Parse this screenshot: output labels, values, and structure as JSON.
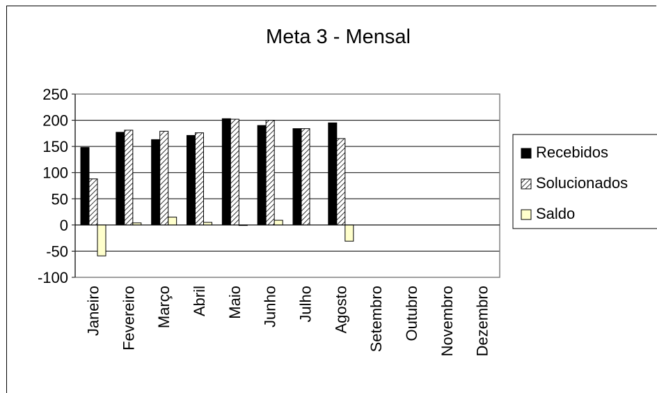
{
  "chart_data": {
    "type": "bar",
    "title": "Meta 3 - Mensal",
    "categories": [
      "Janeiro",
      "Fevereiro",
      "Março",
      "Abril",
      "Maio",
      "Junho",
      "Julho",
      "Agosto",
      "Setembro",
      "Outubro",
      "Novembro",
      "Dezembro"
    ],
    "ylim": [
      -100,
      250
    ],
    "yticks": [
      -100,
      -50,
      0,
      50,
      100,
      150,
      200,
      250
    ],
    "grid": true,
    "legend_position": "right",
    "series": [
      {
        "name": "Recebidos",
        "color": "#000000",
        "fill": "solid",
        "values": [
          148,
          177,
          163,
          171,
          203,
          190,
          184,
          195,
          null,
          null,
          null,
          null
        ]
      },
      {
        "name": "Solucionados",
        "color": "#ffffff",
        "fill": "diagonal-hatch",
        "values": [
          88,
          181,
          179,
          176,
          202,
          200,
          184,
          165,
          null,
          null,
          null,
          null
        ]
      },
      {
        "name": "Saldo",
        "color": "#ffffcc",
        "fill": "solid",
        "values": [
          -59,
          4,
          15,
          5,
          -1,
          9,
          0,
          -31,
          null,
          null,
          null,
          null
        ]
      }
    ]
  }
}
